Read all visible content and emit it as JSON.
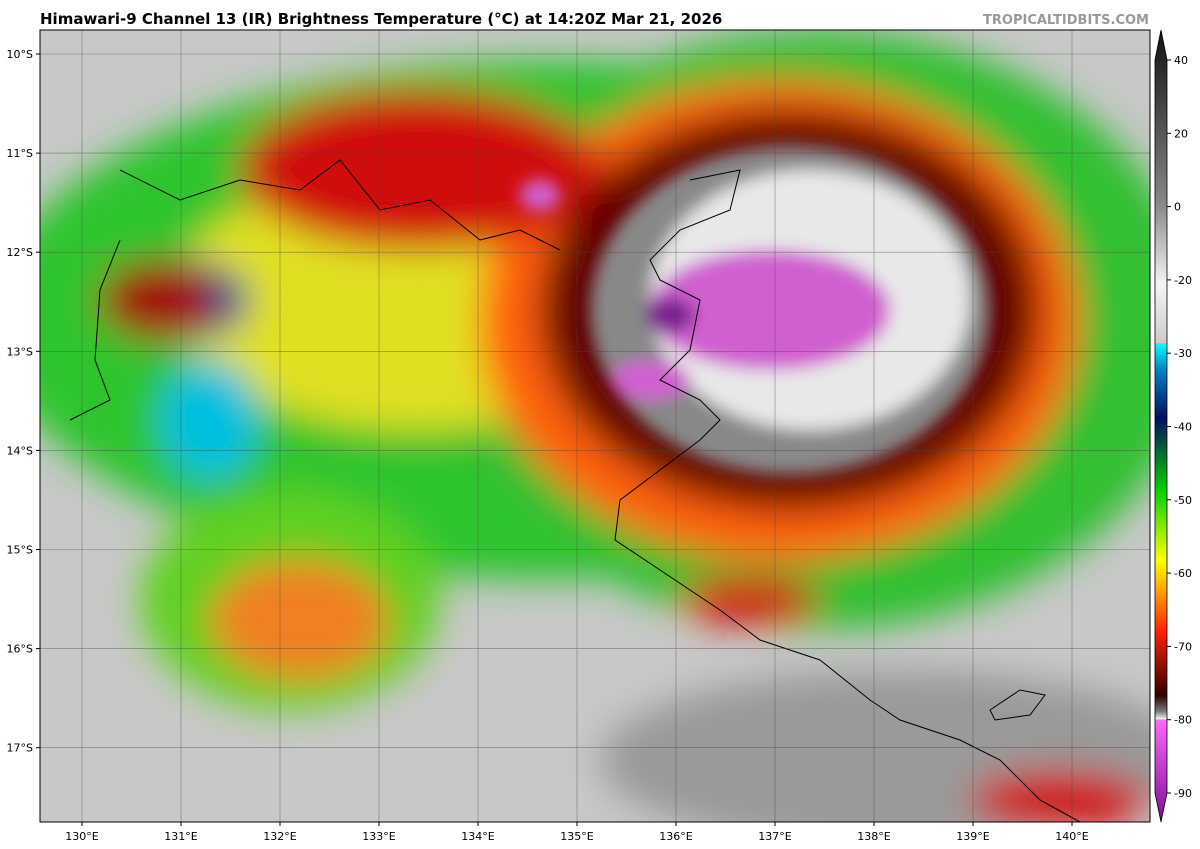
{
  "title": "Himawari-9 Channel 13 (IR) Brightness Temperature (°C) at 14:20Z Mar 21, 2026",
  "watermark": "TROPICALTIDBITS.COM",
  "lat_labels": [
    {
      "value": -10,
      "label": "10°S"
    },
    {
      "value": -11,
      "label": "11°S"
    },
    {
      "value": -12,
      "label": "12°S"
    },
    {
      "value": -13,
      "label": "13°S"
    },
    {
      "value": -14,
      "label": "14°S"
    },
    {
      "value": -15,
      "label": "15°S"
    },
    {
      "value": -16,
      "label": "16°S"
    },
    {
      "value": -17,
      "label": "17°S"
    }
  ],
  "lon_labels": [
    {
      "value": 130,
      "label": "130°E"
    },
    {
      "value": 131,
      "label": "131°E"
    },
    {
      "value": 132,
      "label": "132°E"
    },
    {
      "value": 133,
      "label": "133°E"
    },
    {
      "value": 134,
      "label": "134°E"
    },
    {
      "value": 135,
      "label": "135°E"
    },
    {
      "value": 136,
      "label": "136°E"
    },
    {
      "value": 137,
      "label": "137°E"
    },
    {
      "value": 138,
      "label": "138°E"
    },
    {
      "value": 139,
      "label": "139°E"
    },
    {
      "value": 140,
      "label": "140°E"
    }
  ],
  "colorbar_ticks": [
    40,
    20,
    0,
    -20,
    -30,
    -40,
    -50,
    -60,
    -70,
    -80,
    -90
  ]
}
